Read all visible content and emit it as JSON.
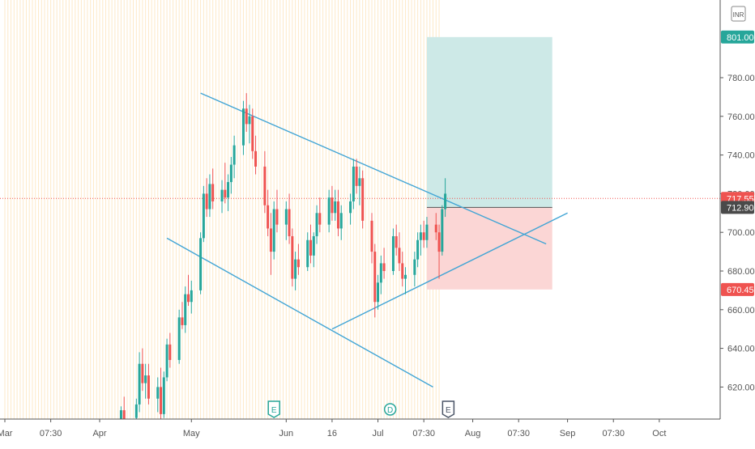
{
  "currency": "INR",
  "colors": {
    "up": "#26a69a",
    "down": "#ef5350",
    "line": "#42a5d5",
    "target_zone": "#cde9e7",
    "stop_zone": "#fbd6d5",
    "session_stripe": "#fde9c8",
    "axis_text": "#555555",
    "event_marker": "#26a69a",
    "earnings_marker_active": "#4a5466"
  },
  "chart_data": {
    "type": "candlestick",
    "ylim": [
      600,
      820
    ],
    "y_ticks": [
      620,
      640,
      660,
      680,
      700,
      720,
      740,
      760,
      780
    ],
    "y_tick_labels": [
      "620.00",
      "640.00",
      "660.00",
      "680.00",
      "700.00",
      "720.00",
      "740.00",
      "760.00",
      "780.00"
    ],
    "x_ticks": [
      {
        "label": "Mar",
        "date": "2020-03-01"
      },
      {
        "label": "07:30",
        "date": "2020-03-16"
      },
      {
        "label": "Apr",
        "date": "2020-04-01"
      },
      {
        "label": "May",
        "date": "2020-05-01"
      },
      {
        "label": "Jun",
        "date": "2020-06-01"
      },
      {
        "label": "16",
        "date": "2020-06-16"
      },
      {
        "label": "Jul",
        "date": "2020-07-01"
      },
      {
        "label": "07:30",
        "date": "2020-07-16"
      },
      {
        "label": "Aug",
        "date": "2020-08-01"
      },
      {
        "label": "07:30",
        "date": "2020-08-16"
      },
      {
        "label": "Sep",
        "date": "2020-09-01"
      },
      {
        "label": "07:30",
        "date": "2020-09-16"
      },
      {
        "label": "Oct",
        "date": "2020-10-01"
      }
    ],
    "price_labels": [
      {
        "value": 801.0,
        "text": "801.00",
        "kind": "target"
      },
      {
        "value": 717.55,
        "text": "717.55",
        "kind": "last"
      },
      {
        "value": 712.9,
        "text": "712.90",
        "kind": "entry"
      },
      {
        "value": 670.45,
        "text": "670.45",
        "kind": "stop"
      }
    ],
    "position": {
      "start": "2020-07-17",
      "end": "2020-08-27",
      "entry": 712.9,
      "target": 801.0,
      "stop": 670.45
    },
    "trendlines": [
      {
        "from": [
          "2020-05-04",
          772
        ],
        "to": [
          "2020-08-25",
          694
        ]
      },
      {
        "from": [
          "2020-04-23",
          697
        ],
        "to": [
          "2020-07-19",
          620
        ]
      },
      {
        "from": [
          "2020-06-16",
          650
        ],
        "to": [
          "2020-09-01",
          710
        ]
      }
    ],
    "events": [
      {
        "date": "2020-05-28",
        "label": "E"
      },
      {
        "date": "2020-07-05",
        "label": "D"
      },
      {
        "date": "2020-07-24",
        "label": "E"
      }
    ],
    "candles": [
      [
        "2020-04-08",
        596,
        610,
        590,
        608
      ],
      [
        "2020-04-09",
        608,
        615,
        600,
        603
      ],
      [
        "2020-04-13",
        604,
        614,
        598,
        611
      ],
      [
        "2020-04-14",
        611,
        638,
        607,
        632
      ],
      [
        "2020-04-15",
        632,
        640,
        618,
        622
      ],
      [
        "2020-04-16",
        622,
        632,
        614,
        626
      ],
      [
        "2020-04-17",
        626,
        632,
        611,
        614
      ],
      [
        "2020-04-20",
        614,
        625,
        607,
        620
      ],
      [
        "2020-04-21",
        620,
        630,
        603,
        606
      ],
      [
        "2020-04-22",
        606,
        628,
        604,
        625
      ],
      [
        "2020-04-23",
        625,
        645,
        623,
        642
      ],
      [
        "2020-04-24",
        642,
        648,
        630,
        634
      ],
      [
        "2020-04-27",
        634,
        660,
        632,
        656
      ],
      [
        "2020-04-28",
        656,
        664,
        650,
        652
      ],
      [
        "2020-04-29",
        652,
        672,
        648,
        668
      ],
      [
        "2020-04-30",
        668,
        678,
        662,
        664
      ],
      [
        "2020-05-01",
        664,
        675,
        658,
        670
      ],
      [
        "2020-05-04",
        670,
        700,
        668,
        697
      ],
      [
        "2020-05-05",
        697,
        724,
        695,
        720
      ],
      [
        "2020-05-06",
        720,
        728,
        708,
        712
      ],
      [
        "2020-05-07",
        712,
        730,
        708,
        725
      ],
      [
        "2020-05-08",
        725,
        733,
        712,
        716
      ],
      [
        "2020-05-11",
        716,
        727,
        710,
        722
      ],
      [
        "2020-05-12",
        722,
        736,
        715,
        718
      ],
      [
        "2020-05-13",
        718,
        730,
        711,
        726
      ],
      [
        "2020-05-14",
        726,
        739,
        720,
        735
      ],
      [
        "2020-05-15",
        735,
        750,
        728,
        745
      ],
      [
        "2020-05-18",
        745,
        768,
        740,
        764
      ],
      [
        "2020-05-19",
        764,
        772,
        752,
        756
      ],
      [
        "2020-05-20",
        756,
        766,
        746,
        760
      ],
      [
        "2020-05-21",
        760,
        764,
        738,
        742
      ],
      [
        "2020-05-22",
        742,
        750,
        730,
        734
      ],
      [
        "2020-05-25",
        734,
        742,
        710,
        714
      ],
      [
        "2020-05-26",
        714,
        722,
        698,
        702
      ],
      [
        "2020-05-27",
        702,
        710,
        678,
        690
      ],
      [
        "2020-05-28",
        690,
        716,
        686,
        712
      ],
      [
        "2020-05-29",
        712,
        722,
        700,
        704
      ],
      [
        "2020-06-01",
        704,
        716,
        696,
        712
      ],
      [
        "2020-06-02",
        712,
        720,
        694,
        698
      ],
      [
        "2020-06-03",
        698,
        702,
        672,
        676
      ],
      [
        "2020-06-04",
        676,
        690,
        670,
        686
      ],
      [
        "2020-06-05",
        686,
        694,
        678,
        682
      ],
      [
        "2020-06-08",
        682,
        700,
        680,
        696
      ],
      [
        "2020-06-09",
        696,
        704,
        684,
        688
      ],
      [
        "2020-06-10",
        688,
        700,
        682,
        698
      ],
      [
        "2020-06-11",
        698,
        714,
        694,
        710
      ],
      [
        "2020-06-12",
        710,
        718,
        700,
        704
      ],
      [
        "2020-06-15",
        704,
        722,
        700,
        718
      ],
      [
        "2020-06-16",
        718,
        724,
        706,
        710
      ],
      [
        "2020-06-17",
        710,
        722,
        706,
        716
      ],
      [
        "2020-06-18",
        716,
        722,
        698,
        702
      ],
      [
        "2020-06-19",
        702,
        714,
        696,
        710
      ],
      [
        "2020-06-22",
        710,
        720,
        704,
        716
      ],
      [
        "2020-06-23",
        716,
        738,
        712,
        734
      ],
      [
        "2020-06-24",
        734,
        738,
        720,
        724
      ],
      [
        "2020-06-25",
        724,
        734,
        714,
        728
      ],
      [
        "2020-06-26",
        728,
        732,
        702,
        706
      ],
      [
        "2020-06-29",
        706,
        710,
        684,
        690
      ],
      [
        "2020-06-30",
        690,
        694,
        656,
        664
      ],
      [
        "2020-07-01",
        664,
        678,
        660,
        674
      ],
      [
        "2020-07-02",
        674,
        688,
        668,
        684
      ],
      [
        "2020-07-03",
        684,
        692,
        676,
        680
      ],
      [
        "2020-07-06",
        680,
        702,
        678,
        698
      ],
      [
        "2020-07-07",
        698,
        704,
        688,
        692
      ],
      [
        "2020-07-08",
        692,
        700,
        680,
        684
      ],
      [
        "2020-07-09",
        684,
        690,
        672,
        676
      ],
      [
        "2020-07-10",
        676,
        682,
        668,
        678
      ],
      [
        "2020-07-13",
        678,
        690,
        672,
        686
      ],
      [
        "2020-07-14",
        686,
        700,
        682,
        696
      ],
      [
        "2020-07-15",
        696,
        704,
        688,
        700
      ],
      [
        "2020-07-16",
        700,
        706,
        692,
        696
      ],
      [
        "2020-07-17",
        696,
        708,
        692,
        704
      ],
      [
        "2020-07-20",
        704,
        710,
        696,
        700
      ],
      [
        "2020-07-21",
        700,
        704,
        676,
        690
      ],
      [
        "2020-07-22",
        690,
        714,
        688,
        712
      ],
      [
        "2020-07-23",
        712,
        728,
        708,
        720
      ]
    ]
  }
}
